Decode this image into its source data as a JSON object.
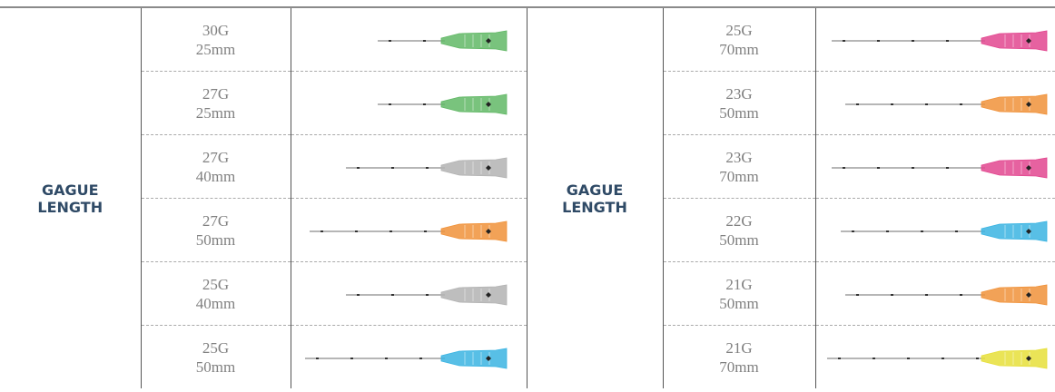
{
  "groups": [
    {
      "heading": [
        "GAGUE",
        "LENGTH"
      ],
      "rows": [
        {
          "gauge": "30G",
          "length": "25mm"
        },
        {
          "gauge": "27G",
          "length": "25mm"
        },
        {
          "gauge": "27G",
          "length": "40mm"
        },
        {
          "gauge": "27G",
          "length": "50mm"
        },
        {
          "gauge": "25G",
          "length": "40mm"
        },
        {
          "gauge": "25G",
          "length": "50mm"
        }
      ]
    },
    {
      "heading": [
        "GAGUE",
        "LENGTH"
      ],
      "rows": [
        {
          "gauge": "25G",
          "length": "70mm"
        },
        {
          "gauge": "23G",
          "length": "50mm"
        },
        {
          "gauge": "23G",
          "length": "70mm"
        },
        {
          "gauge": "22G",
          "length": "50mm"
        },
        {
          "gauge": "21G",
          "length": "50mm"
        },
        {
          "gauge": "21G",
          "length": "70mm"
        }
      ]
    }
  ]
}
